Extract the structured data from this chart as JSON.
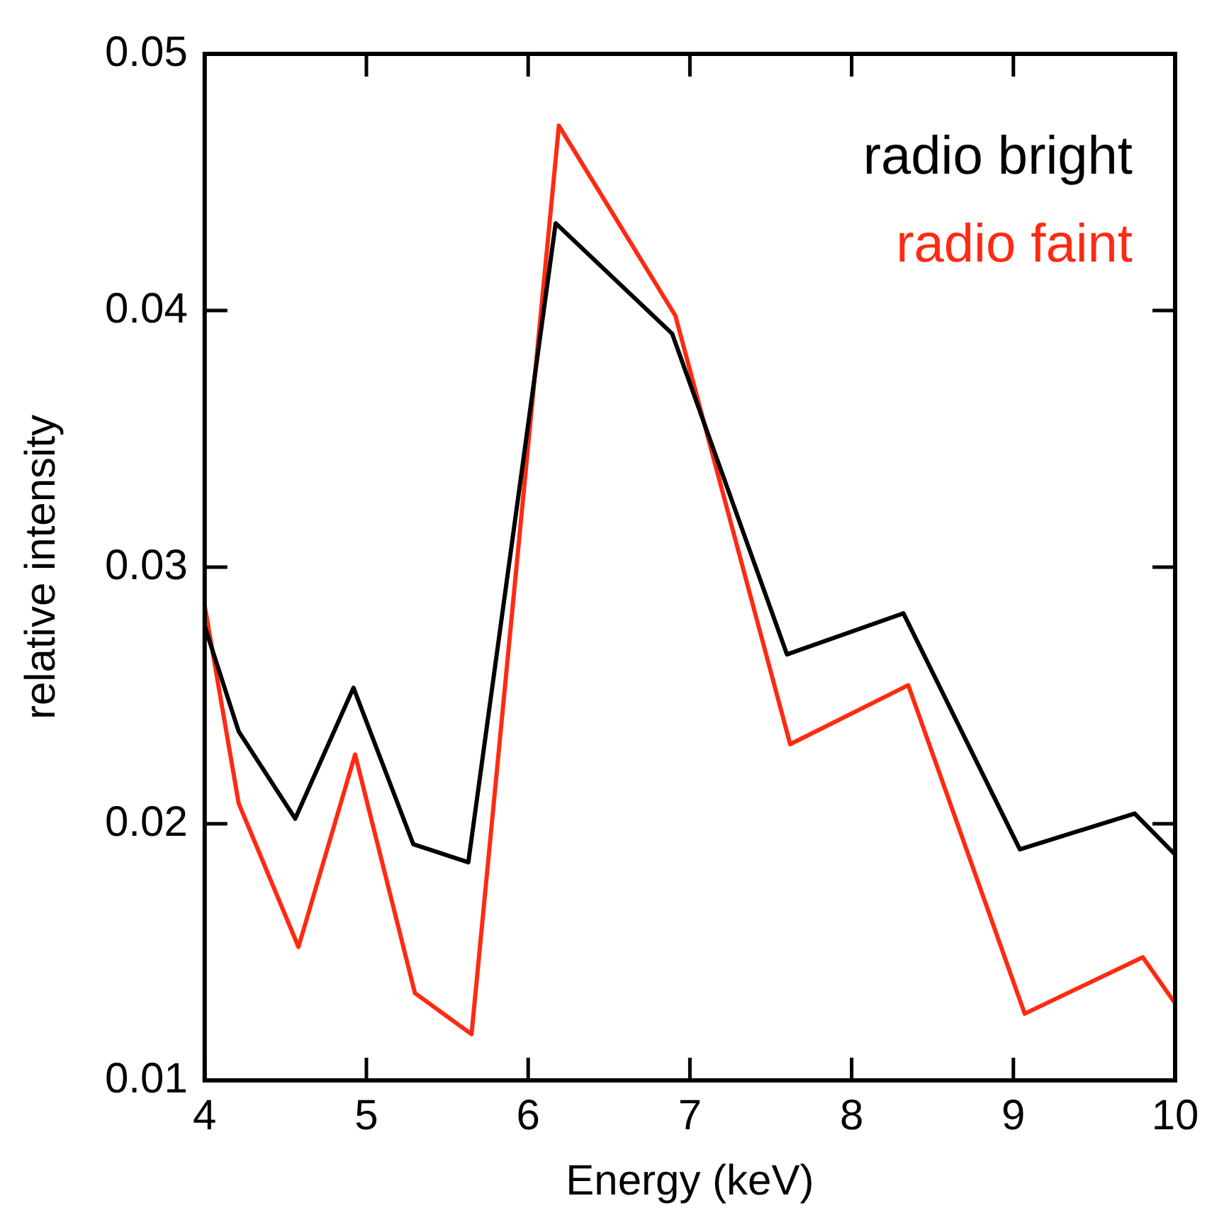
{
  "chart_data": {
    "type": "line",
    "xlabel": "Energy (keV)",
    "ylabel": "relative intensity",
    "xlim": [
      4,
      10
    ],
    "xticks": [
      4,
      5,
      6,
      7,
      8,
      9,
      10
    ],
    "ylim": [
      0.01,
      0.05
    ],
    "yticks": [
      0.01,
      0.02,
      0.03,
      0.04,
      0.05
    ],
    "grid": false,
    "legend": "top right",
    "marker": "none",
    "line_style": "solid",
    "series": [
      {
        "name": "radio bright",
        "color": "#000000",
        "x": [
          4,
          4.21,
          4.56,
          4.92,
          5.29,
          5.63,
          6.17,
          6.89,
          7.6,
          8.32,
          9.04,
          9.75,
          10
        ],
        "values": [
          0.0277,
          0.0236,
          0.0202,
          0.0253,
          0.0192,
          0.0185,
          0.0434,
          0.0391,
          0.0266,
          0.0282,
          0.019,
          0.0204,
          0.0188
        ]
      },
      {
        "name": "radio faint",
        "color": "#ff2a12",
        "x": [
          4,
          4.21,
          4.58,
          4.93,
          5.3,
          5.65,
          6.19,
          6.91,
          7.62,
          8.35,
          9.07,
          9.8,
          10
        ],
        "values": [
          0.0285,
          0.0208,
          0.0152,
          0.0227,
          0.0134,
          0.0118,
          0.0472,
          0.0398,
          0.0231,
          0.0254,
          0.0126,
          0.0148,
          0.013
        ]
      }
    ]
  }
}
